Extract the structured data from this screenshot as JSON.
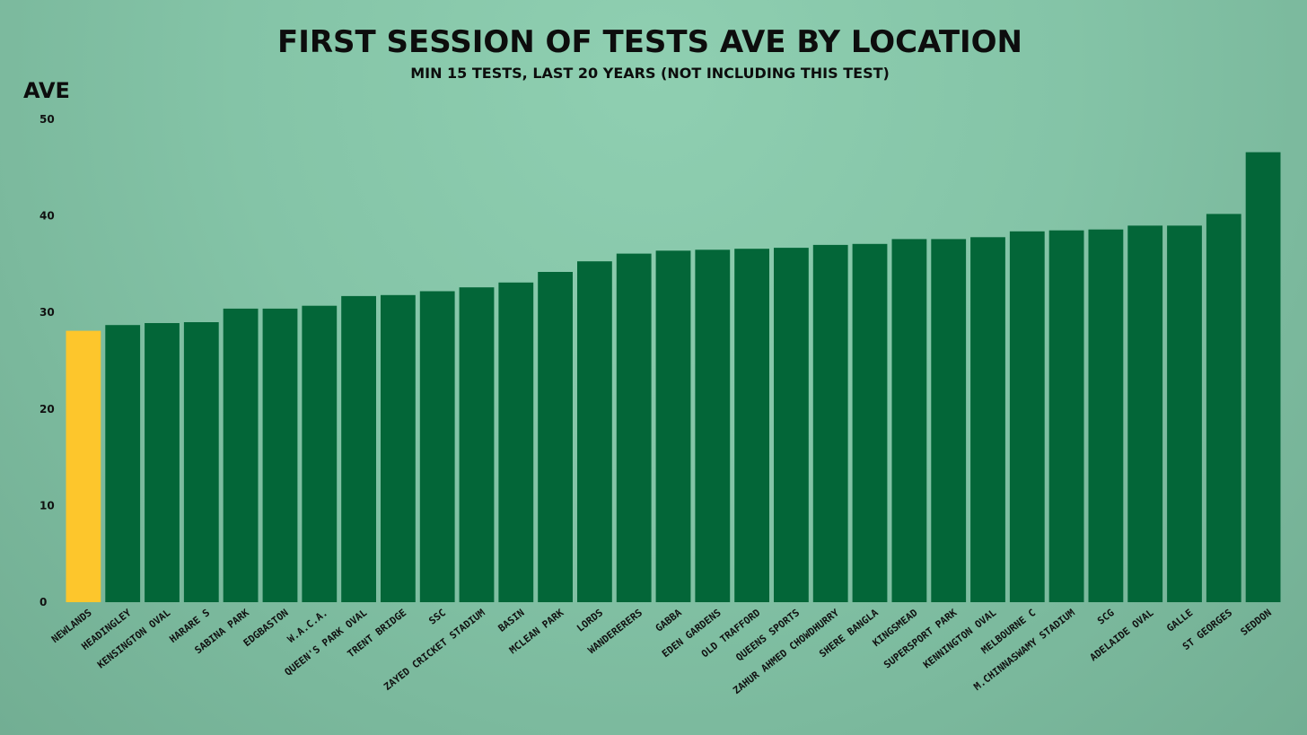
{
  "chart_data": {
    "type": "bar",
    "title": "FIRST SESSION OF TESTS AVE BY LOCATION",
    "subtitle": "MIN 15 TESTS, LAST 20 YEARS (NOT INCLUDING THIS TEST)",
    "xlabel": "",
    "ylabel": "AVE",
    "ylim": [
      0,
      50
    ],
    "yticks": [
      0,
      10,
      20,
      30,
      40,
      50
    ],
    "grid": false,
    "categories": [
      "NEWLANDS",
      "HEADINGLEY",
      "KENSINGTON OVAL",
      "HARARE S",
      "SABINA PARK",
      "EDGBASTON",
      "W.A.C.A.",
      "QUEEN'S PARK OVAL",
      "TRENT BRIDGE",
      "SSC",
      "ZAYED CRICKET STADIUM",
      "BASIN",
      "MCLEAN PARK",
      "LORDS",
      "WANDERERERS",
      "GABBA",
      "EDEN GARDENS",
      "OLD TRAFFORD",
      "QUEENS SPORTS",
      "ZAHUR AHMED CHOWDHURRY",
      "SHERE BANGLA",
      "KINGSMEAD",
      "SUPERSPORT PARK",
      "KENNINGTON OVAL",
      "MELBOURNE C",
      "M.CHINNASWAMY STADIUM",
      "SCG",
      "ADELAIDE OVAL",
      "GALLE",
      "ST GEORGES",
      "SEDDON"
    ],
    "values": [
      28.1,
      28.7,
      28.9,
      29.0,
      30.4,
      30.4,
      30.7,
      31.7,
      31.8,
      32.2,
      32.6,
      33.1,
      34.2,
      35.3,
      36.1,
      36.4,
      36.5,
      36.6,
      36.7,
      37.0,
      37.1,
      37.6,
      37.6,
      37.8,
      38.4,
      38.5,
      38.6,
      39.0,
      39.0,
      40.2,
      46.6
    ],
    "highlight_index": 0,
    "colors": {
      "bar": "#036638",
      "highlight": "#fdc62c",
      "text": "#111111"
    }
  }
}
